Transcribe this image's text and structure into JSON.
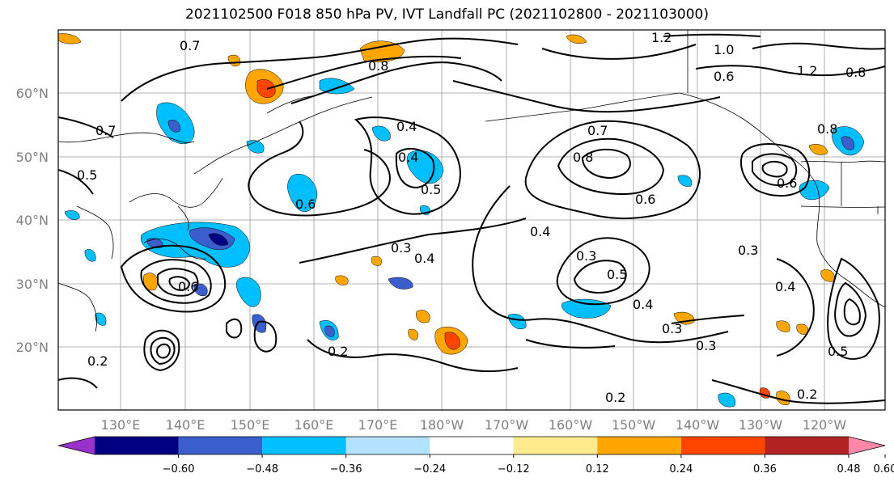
{
  "title": "2021102500 F018 850 hPa PV, IVT Landfall PC (2021102800 - 2021103000)",
  "lat_labels": [
    "60°N",
    "50°N",
    "40°N",
    "30°N",
    "20°N"
  ],
  "lon_labels": [
    "130°E",
    "140°E",
    "150°E",
    "160°E",
    "170°E",
    "180°W",
    "170°W",
    "160°W",
    "150°W",
    "140°W",
    "130°W",
    "120°W"
  ],
  "colorbar": {
    "colors": [
      "#9932CC",
      "#000080",
      "#3A5FCD",
      "#00BFFF",
      "#B2E2FF",
      "#FFFFFF",
      "#FFEB8C",
      "#FFA500",
      "#FF4500",
      "#B22222",
      "#FF88AA"
    ],
    "tick_labels": [
      "−0.60",
      "−0.48",
      "−0.36",
      "−0.24",
      "−0.12",
      "0.12",
      "0.24",
      "0.36",
      "0.48",
      "0.60"
    ]
  },
  "contour_labels": [
    "0.7",
    "0.8",
    "1.2",
    "1.0",
    "0.6",
    "1.2",
    "0.8",
    "0.7",
    "0.5",
    "0.4",
    "0.6",
    "0.4",
    "0.5",
    "0.7",
    "0.8",
    "0.6",
    "0.3",
    "0.4",
    "0.3",
    "0.5",
    "0.4",
    "0.3",
    "0.4",
    "0.2",
    "0.2",
    "0.3",
    "0.2",
    "0.5",
    "0.6",
    "0.8",
    "0.3",
    "0.4",
    "0.2",
    "0.6"
  ]
}
